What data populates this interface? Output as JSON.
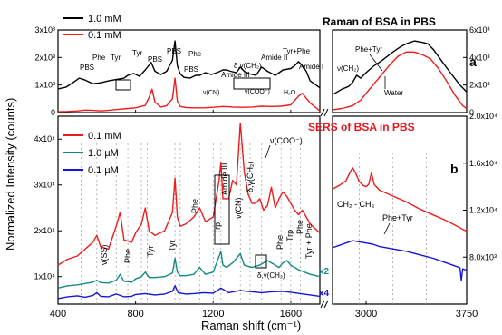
{
  "colors": {
    "black": "#000000",
    "red": "#ee1c1c",
    "teal": "#158a80",
    "blue": "#1515d8",
    "title_red": "#e8151b",
    "grid": "#9a9a9a"
  },
  "figure": {
    "y_axis_label": "Normalized Intensity (counts)",
    "x_axis_label": "Raman shift (cm⁻¹)"
  },
  "chart_data": [
    {
      "panel": "a",
      "type": "line",
      "title": "Raman of BSA in PBS",
      "panel_letter": "a",
      "xlim": [
        400,
        1750
      ],
      "ylim": [
        0,
        3000
      ],
      "yticks_label": [
        "0",
        "1x10³",
        "2x10³",
        "3x10³"
      ],
      "legend": [
        "1.0 mM",
        "0.1 mM"
      ],
      "series": [
        {
          "name": "1.0 mM",
          "color": "black",
          "x": [
            400,
            440,
            480,
            510,
            540,
            580,
            620,
            660,
            700,
            740,
            760,
            790,
            820,
            850,
            880,
            900,
            930,
            960,
            990,
            1003,
            1015,
            1030,
            1050,
            1080,
            1110,
            1130,
            1160,
            1190,
            1220,
            1250,
            1270,
            1290,
            1320,
            1340,
            1360,
            1390,
            1420,
            1450,
            1480,
            1520,
            1560,
            1600,
            1620,
            1640,
            1660,
            1680,
            1700,
            1750
          ],
          "y": [
            860,
            920,
            1100,
            1250,
            1180,
            1050,
            1080,
            1150,
            1200,
            1250,
            1350,
            1420,
            1320,
            1550,
            1820,
            1500,
            1380,
            1500,
            1900,
            2600,
            1700,
            1400,
            1280,
            1250,
            1350,
            1350,
            1450,
            1380,
            1450,
            1550,
            1550,
            1500,
            1450,
            1650,
            1500,
            1400,
            1350,
            1650,
            1500,
            1350,
            1550,
            1600,
            1700,
            1850,
            1700,
            1500,
            1150,
            900
          ]
        },
        {
          "name": "0.1 mM",
          "color": "red",
          "x": [
            400,
            450,
            500,
            540,
            580,
            620,
            660,
            700,
            760,
            800,
            850,
            870,
            885,
            900,
            930,
            960,
            990,
            1003,
            1015,
            1030,
            1060,
            1100,
            1150,
            1200,
            1250,
            1300,
            1350,
            1400,
            1450,
            1500,
            1550,
            1600,
            1640,
            1660,
            1700,
            1750
          ],
          "y": [
            30,
            40,
            60,
            90,
            80,
            60,
            80,
            110,
            150,
            170,
            260,
            560,
            850,
            380,
            200,
            250,
            500,
            1250,
            420,
            220,
            180,
            170,
            170,
            190,
            220,
            200,
            190,
            200,
            230,
            220,
            230,
            280,
            600,
            700,
            350,
            60
          ]
        }
      ],
      "annotations": [
        "PBS",
        "Phe",
        "Tyr",
        "Tyr",
        "PBS",
        "PBS",
        "Phe",
        "PBS",
        "Amide III",
        "δ,γ(CH₂)",
        "Amide II",
        "Tyr+Phe",
        "Amide I",
        "ν(CN)",
        "ν(COO⁻)",
        "H₂O"
      ]
    },
    {
      "panel": "a-right",
      "type": "line",
      "xlim": [
        2750,
        3750
      ],
      "ylim": [
        0,
        6000
      ],
      "yticks_label": [
        "0",
        "2x10³",
        "4x10³",
        "6x10³"
      ],
      "series": [
        {
          "name": "1.0 mM",
          "color": "black",
          "x": [
            2750,
            2820,
            2870,
            2900,
            2930,
            2960,
            3000,
            3060,
            3120,
            3200,
            3260,
            3300,
            3360,
            3420,
            3460,
            3500,
            3560,
            3620,
            3700,
            3750
          ],
          "y": [
            1300,
            1700,
            1900,
            2200,
            2700,
            2500,
            2900,
            3400,
            3800,
            4400,
            4800,
            5000,
            5200,
            5100,
            5000,
            4600,
            3800,
            3000,
            2000,
            1500
          ]
        },
        {
          "name": "0.1 mM",
          "color": "red",
          "x": [
            2750,
            2820,
            2900,
            2960,
            3000,
            3060,
            3120,
            3180,
            3240,
            3300,
            3360,
            3420,
            3480,
            3540,
            3600,
            3660,
            3720,
            3750
          ],
          "y": [
            200,
            300,
            500,
            900,
            1400,
            2100,
            2800,
            3500,
            4100,
            4400,
            4400,
            4200,
            3900,
            3200,
            2300,
            1300,
            500,
            300
          ]
        }
      ],
      "annotations": [
        "Phe+Tyr",
        "ν(CH₂)",
        "Water"
      ]
    },
    {
      "panel": "b",
      "type": "line",
      "title": "SERS of BSA in PBS",
      "panel_letter": "b",
      "xlim": [
        400,
        1750
      ],
      "ylim": [
        4000,
        45000
      ],
      "xticks": [
        400,
        800,
        1200,
        1600
      ],
      "yticks_label": [
        "1x10⁴",
        "2x10⁴",
        "3x10⁴",
        "4x10⁴"
      ],
      "legend": [
        "0.1 mM",
        "1.0 µM",
        "0.1 µM"
      ],
      "series": [
        {
          "name": "0.1 mM",
          "color": "red",
          "x": [
            400,
            450,
            500,
            540,
            580,
            600,
            620,
            660,
            700,
            720,
            740,
            780,
            800,
            830,
            850,
            870,
            900,
            950,
            990,
            1003,
            1015,
            1030,
            1060,
            1100,
            1130,
            1160,
            1200,
            1230,
            1240,
            1250,
            1280,
            1300,
            1320,
            1340,
            1360,
            1380,
            1400,
            1420,
            1440,
            1460,
            1480,
            1500,
            1520,
            1540,
            1560,
            1580,
            1600,
            1620,
            1640,
            1660,
            1700,
            1750
          ],
          "y": [
            12500,
            13800,
            14500,
            16000,
            17500,
            19000,
            16500,
            16000,
            21000,
            24000,
            18000,
            17500,
            19500,
            21500,
            25000,
            20000,
            19000,
            20000,
            24000,
            31500,
            23000,
            21000,
            21500,
            23000,
            25000,
            22000,
            23000,
            31000,
            35000,
            27000,
            27000,
            31000,
            30000,
            43500,
            33000,
            28000,
            26000,
            26000,
            27000,
            24500,
            25500,
            29500,
            25000,
            27000,
            28500,
            27500,
            26000,
            24500,
            23500,
            24500,
            21500,
            19500
          ]
        },
        {
          "name": "1.0 µM",
          "color": "teal",
          "label": "x2",
          "x": [
            400,
            450,
            500,
            540,
            580,
            600,
            620,
            660,
            700,
            720,
            740,
            780,
            800,
            830,
            850,
            870,
            900,
            950,
            990,
            1003,
            1015,
            1030,
            1060,
            1100,
            1130,
            1160,
            1200,
            1240,
            1250,
            1270,
            1300,
            1340,
            1360,
            1400,
            1440,
            1480,
            1520,
            1540,
            1560,
            1580,
            1600,
            1640,
            1700,
            1750
          ],
          "y": [
            7500,
            8000,
            8200,
            8500,
            8800,
            9200,
            8700,
            8600,
            9200,
            10500,
            9000,
            8800,
            9500,
            10000,
            11000,
            9800,
            9800,
            10000,
            10800,
            14000,
            11000,
            10200,
            10200,
            10500,
            12000,
            10500,
            11000,
            15500,
            12500,
            12000,
            13000,
            15000,
            12500,
            12000,
            12500,
            13500,
            12500,
            12000,
            13000,
            13500,
            12500,
            11500,
            10500,
            10000
          ]
        },
        {
          "name": "0.1 µM",
          "color": "blue",
          "label": "x4",
          "x": [
            400,
            450,
            500,
            540,
            580,
            600,
            620,
            660,
            700,
            740,
            780,
            800,
            850,
            900,
            950,
            990,
            1003,
            1020,
            1060,
            1100,
            1150,
            1200,
            1240,
            1280,
            1340,
            1400,
            1450,
            1500,
            1560,
            1600,
            1650,
            1700,
            1750
          ],
          "y": [
            5200,
            5600,
            5800,
            5500,
            5900,
            6500,
            5700,
            5600,
            6200,
            5600,
            5700,
            6100,
            6300,
            6000,
            6200,
            6800,
            8000,
            6500,
            6200,
            6300,
            6500,
            6400,
            7500,
            6500,
            7000,
            6700,
            6500,
            6700,
            6800,
            6600,
            6300,
            6000,
            5700
          ]
        }
      ],
      "annotations": [
        "ν(SS)",
        "Phe",
        "Tyr",
        "Tyr",
        "Phe",
        "Trp",
        "ν(CN)",
        "Amide III",
        "δ,γ(CH₂)",
        "ν(COO⁻)",
        "Phe",
        "Trp",
        "Phe",
        "Tyr + Phe",
        "δ,γ(CH₂)"
      ]
    },
    {
      "panel": "b-right",
      "type": "line",
      "xlim": [
        2750,
        3750
      ],
      "xticks": [
        3000,
        3750
      ],
      "ylim": [
        4000,
        20000
      ],
      "yticks_label": [
        "8.0x10³",
        "1.2x10⁴",
        "1.6x10⁴",
        "2.0x10⁴"
      ],
      "series": [
        {
          "name": "0.1 mM",
          "color": "red",
          "x": [
            2750,
            2800,
            2850,
            2880,
            2900,
            2920,
            2950,
            2980,
            3000,
            3020,
            3040,
            3060,
            3100,
            3200,
            3300,
            3400,
            3500,
            3600,
            3700,
            3750
          ],
          "y": [
            13800,
            14100,
            14500,
            15200,
            15600,
            15200,
            14400,
            14100,
            14000,
            14200,
            15200,
            14200,
            13700,
            13200,
            12700,
            12100,
            11600,
            11100,
            10500,
            10200
          ]
        },
        {
          "name": "1.0 µM",
          "color": "blue",
          "x": [
            2750,
            2800,
            2850,
            2900,
            2950,
            3000,
            3050,
            3100,
            3200,
            3300,
            3400,
            3500,
            3600,
            3650,
            3700,
            3710,
            3720,
            3750
          ],
          "y": [
            8800,
            9000,
            9200,
            9400,
            9300,
            9200,
            9100,
            8900,
            8700,
            8500,
            8200,
            7900,
            7500,
            7300,
            7100,
            6000,
            7000,
            6900
          ]
        }
      ],
      "annotations": [
        "CH₂ - CH₃",
        "Phe+Tyr"
      ]
    }
  ],
  "axis_a_left": [
    "0",
    "1x10³",
    "2x10³",
    "3x10³"
  ],
  "axis_a_right": [
    "0",
    "2x10³",
    "4x10³",
    "6x10³"
  ],
  "axis_b_left": [
    "1x10⁴",
    "2x10⁴",
    "3x10⁴",
    "4x10⁴"
  ],
  "axis_b_right": [
    "8.0x10³",
    "1.2x10⁴",
    "1.6x10⁴",
    "2.0x10⁴"
  ],
  "xticks_left": [
    "400",
    "800",
    "1200",
    "1600"
  ],
  "xticks_right": [
    "3000",
    "3750"
  ]
}
